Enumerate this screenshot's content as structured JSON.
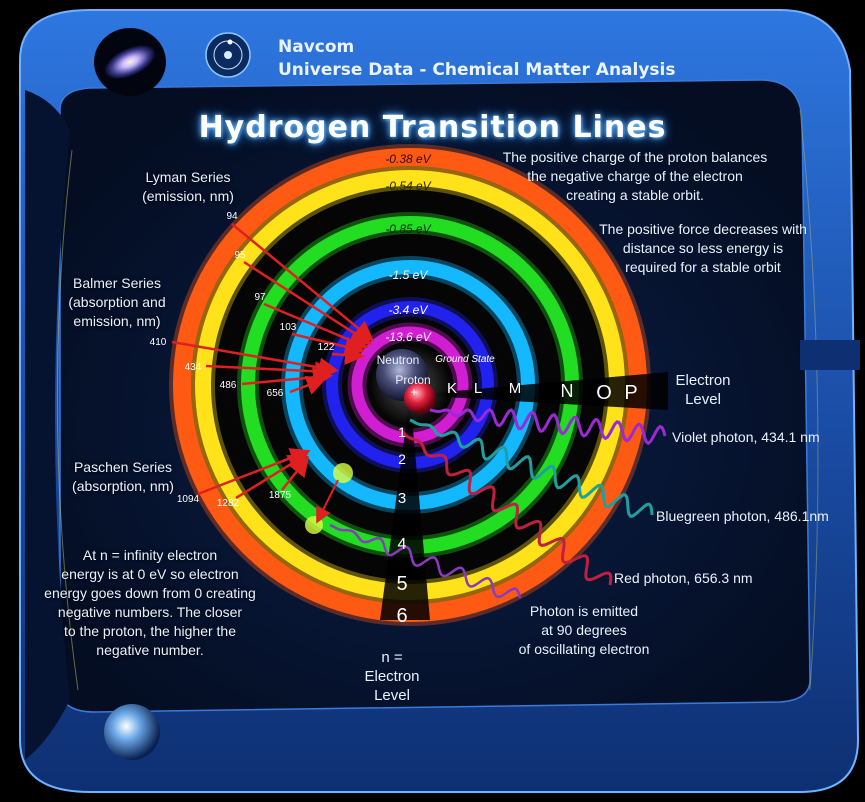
{
  "header": {
    "line1": "Navcom",
    "line2": "Universe Data - Chemical Matter Analysis"
  },
  "title": "Hydrogen Transition Lines",
  "series_labels": {
    "lyman": "Lyman Series\n(emission, nm)",
    "balmer": "Balmer Series\n(absorption and\nemission, nm)",
    "paschen": "Paschen Series\n(absorption, nm)"
  },
  "wavelengths": {
    "lyman": [
      "94",
      "95",
      "97",
      "103",
      "122"
    ],
    "balmer": [
      "410",
      "434",
      "486",
      "656"
    ],
    "paschen": [
      "1094",
      "1282",
      "1875"
    ]
  },
  "energy_levels": [
    "-13.6 eV",
    "-3.4 eV",
    "-1.5 eV",
    "-0.85 eV",
    "-0.54 eV",
    "-0.38 eV"
  ],
  "n_levels": [
    "1",
    "2",
    "3",
    "4",
    "5",
    "6"
  ],
  "shell_letters": [
    "K",
    "L",
    "M",
    "N",
    "O",
    "P"
  ],
  "nucleus": {
    "neutron": "Neutron",
    "proton": "Proton",
    "plus": "+",
    "ground_state": "Ground State"
  },
  "notes": {
    "positive_charge": "The positive charge of the proton balances\nthe negative charge of the electron\ncreating a stable orbit.",
    "positive_force": "The positive force decreases with\ndistance so less energy is\nrequired for a stable orbit",
    "infinity": "At n = infinity  electron\nenergy  is at 0 eV so electron\nenergy goes down from 0 creating\nnegative numbers.  The  closer\nto the proton, the higher the\nnegative number.",
    "photon_emitted": "Photon is emitted\nat 90 degrees\nof oscillating electron",
    "electron_level_right": "Electron\nLevel",
    "electron_level_bottom": "n =\nElectron\nLevel"
  },
  "photons": {
    "violet": "Violet photon, 434.1 nm",
    "bluegreen": "Bluegreen photon, 486.1nm",
    "red": "Red photon, 656.3 nm"
  },
  "colors": {
    "frame_blue": "#1f5fc4",
    "panel_dark": "#07142e",
    "ring_orange": "#ff5a14",
    "ring_yellow": "#ffe21a",
    "ring_green": "#22dd22",
    "ring_cyan": "#14b8ff",
    "ring_blue": "#2222ee",
    "ring_magenta": "#d21ed2",
    "arrow_red": "#e02020",
    "photon_violet": "#9a2ad6",
    "photon_bluegreen": "#1fa0a0",
    "photon_red": "#c02040"
  },
  "icons": [
    "galaxy-icon",
    "atom-orbit-icon",
    "earth-icon"
  ]
}
